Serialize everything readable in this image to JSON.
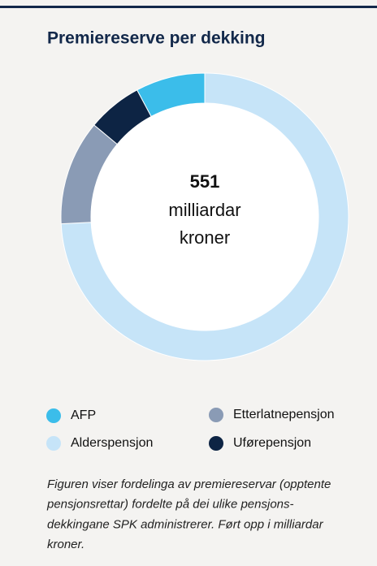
{
  "chart_data": {
    "type": "donut",
    "title": "Premiereserve per dekking",
    "center_value": 551,
    "center_text": [
      "milliardar",
      "kroner"
    ],
    "series": [
      {
        "name": "AFP",
        "color": "#3bbdea",
        "value": 43
      },
      {
        "name": "Alderspensjon",
        "color": "#c6e4f8",
        "value": 409
      },
      {
        "name": "Etterlatnepensjon",
        "color": "#8a9bb5",
        "value": 65
      },
      {
        "name": "Uførepensjon",
        "color": "#0d2444",
        "value": 34
      }
    ],
    "caption": [
      "Figuren viser fordelinga av premiereservar (opptente",
      "pensjonsrettar) fordelte på dei ulike pensjons-",
      "dekkingane SPK administrerer. Ført opp i milliardar",
      "kroner."
    ]
  }
}
